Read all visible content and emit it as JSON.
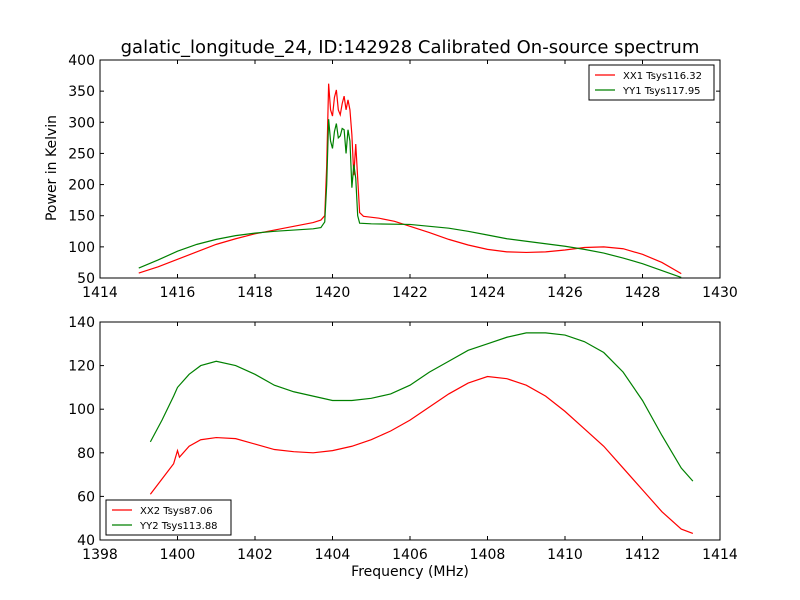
{
  "chart_data": [
    {
      "type": "line",
      "title": "galatic_longitude_24, ID:142928 Calibrated On-source spectrum",
      "xlabel": "",
      "ylabel": "Power in Kelvin",
      "xlim": [
        1414,
        1430
      ],
      "ylim": [
        50,
        400
      ],
      "xticks": [
        1414,
        1416,
        1418,
        1420,
        1422,
        1424,
        1426,
        1428,
        1430
      ],
      "yticks": [
        50,
        100,
        150,
        200,
        250,
        300,
        350,
        400
      ],
      "legend_position": "top-right",
      "series": [
        {
          "name": "XX1 Tsys116.32",
          "color": "#ff0000",
          "points": [
            [
              1415.0,
              58
            ],
            [
              1415.5,
              68
            ],
            [
              1416.0,
              80
            ],
            [
              1416.5,
              92
            ],
            [
              1417.0,
              104
            ],
            [
              1417.5,
              113
            ],
            [
              1418.0,
              121
            ],
            [
              1418.5,
              127
            ],
            [
              1419.0,
              133
            ],
            [
              1419.5,
              139
            ],
            [
              1419.7,
              143
            ],
            [
              1419.8,
              150
            ],
            [
              1419.85,
              230
            ],
            [
              1419.9,
              362
            ],
            [
              1419.95,
              320
            ],
            [
              1420.0,
              310
            ],
            [
              1420.05,
              340
            ],
            [
              1420.1,
              352
            ],
            [
              1420.15,
              320
            ],
            [
              1420.2,
              312
            ],
            [
              1420.25,
              330
            ],
            [
              1420.3,
              342
            ],
            [
              1420.35,
              320
            ],
            [
              1420.4,
              336
            ],
            [
              1420.45,
              320
            ],
            [
              1420.5,
              280
            ],
            [
              1420.55,
              215
            ],
            [
              1420.6,
              265
            ],
            [
              1420.65,
              210
            ],
            [
              1420.7,
              155
            ],
            [
              1420.8,
              149
            ],
            [
              1421.2,
              146
            ],
            [
              1421.6,
              141
            ],
            [
              1422.0,
              133
            ],
            [
              1422.5,
              123
            ],
            [
              1423.0,
              112
            ],
            [
              1423.5,
              103
            ],
            [
              1424.0,
              96
            ],
            [
              1424.5,
              92
            ],
            [
              1425.0,
              91
            ],
            [
              1425.5,
              92
            ],
            [
              1426.0,
              95
            ],
            [
              1426.5,
              99
            ],
            [
              1427.0,
              100
            ],
            [
              1427.5,
              97
            ],
            [
              1428.0,
              88
            ],
            [
              1428.5,
              75
            ],
            [
              1429.0,
              57
            ]
          ]
        },
        {
          "name": "YY1 Tsys117.95",
          "color": "#008000",
          "points": [
            [
              1415.0,
              66
            ],
            [
              1415.5,
              79
            ],
            [
              1416.0,
              93
            ],
            [
              1416.5,
              104
            ],
            [
              1417.0,
              112
            ],
            [
              1417.5,
              118
            ],
            [
              1418.0,
              122
            ],
            [
              1418.5,
              125
            ],
            [
              1419.0,
              127
            ],
            [
              1419.5,
              129
            ],
            [
              1419.7,
              131
            ],
            [
              1419.8,
              140
            ],
            [
              1419.85,
              200
            ],
            [
              1419.9,
              305
            ],
            [
              1419.95,
              270
            ],
            [
              1420.0,
              258
            ],
            [
              1420.05,
              285
            ],
            [
              1420.1,
              298
            ],
            [
              1420.15,
              275
            ],
            [
              1420.2,
              278
            ],
            [
              1420.25,
              290
            ],
            [
              1420.3,
              288
            ],
            [
              1420.35,
              250
            ],
            [
              1420.4,
              288
            ],
            [
              1420.45,
              270
            ],
            [
              1420.5,
              195
            ],
            [
              1420.55,
              232
            ],
            [
              1420.6,
              210
            ],
            [
              1420.65,
              150
            ],
            [
              1420.7,
              138
            ],
            [
              1421.0,
              137
            ],
            [
              1422.0,
              136
            ],
            [
              1423.0,
              130
            ],
            [
              1423.5,
              125
            ],
            [
              1424.0,
              119
            ],
            [
              1424.5,
              113
            ],
            [
              1425.0,
              109
            ],
            [
              1425.5,
              105
            ],
            [
              1426.0,
              101
            ],
            [
              1426.5,
              96
            ],
            [
              1427.0,
              90
            ],
            [
              1427.5,
              82
            ],
            [
              1428.0,
              73
            ],
            [
              1428.5,
              62
            ],
            [
              1429.0,
              51
            ]
          ]
        }
      ]
    },
    {
      "type": "line",
      "title": "",
      "xlabel": "Frequency (MHz)",
      "ylabel": "",
      "xlim": [
        1398,
        1414
      ],
      "ylim": [
        40,
        140
      ],
      "xticks": [
        1398,
        1400,
        1402,
        1404,
        1406,
        1408,
        1410,
        1412,
        1414
      ],
      "yticks": [
        40,
        60,
        80,
        100,
        120,
        140
      ],
      "legend_position": "bottom-left",
      "series": [
        {
          "name": "XX2 Tsys87.06",
          "color": "#ff0000",
          "points": [
            [
              1399.3,
              61
            ],
            [
              1399.6,
              68
            ],
            [
              1399.9,
              75
            ],
            [
              1400.0,
              81
            ],
            [
              1400.05,
              78
            ],
            [
              1400.3,
              83
            ],
            [
              1400.6,
              86
            ],
            [
              1401.0,
              87
            ],
            [
              1401.5,
              86.5
            ],
            [
              1402.0,
              84
            ],
            [
              1402.5,
              81.5
            ],
            [
              1403.0,
              80.5
            ],
            [
              1403.5,
              80
            ],
            [
              1404.0,
              81
            ],
            [
              1404.5,
              83
            ],
            [
              1405.0,
              86
            ],
            [
              1405.5,
              90
            ],
            [
              1406.0,
              95
            ],
            [
              1406.5,
              101
            ],
            [
              1407.0,
              107
            ],
            [
              1407.5,
              112
            ],
            [
              1408.0,
              115
            ],
            [
              1408.5,
              114
            ],
            [
              1409.0,
              111
            ],
            [
              1409.5,
              106
            ],
            [
              1410.0,
              99
            ],
            [
              1410.5,
              91
            ],
            [
              1411.0,
              83
            ],
            [
              1411.5,
              73
            ],
            [
              1412.0,
              63
            ],
            [
              1412.5,
              53
            ],
            [
              1413.0,
              45
            ],
            [
              1413.3,
              43
            ]
          ]
        },
        {
          "name": "YY2 Tsys113.88",
          "color": "#008000",
          "points": [
            [
              1399.3,
              85
            ],
            [
              1399.6,
              95
            ],
            [
              1399.9,
              106
            ],
            [
              1400.0,
              110
            ],
            [
              1400.3,
              116
            ],
            [
              1400.6,
              120
            ],
            [
              1401.0,
              122
            ],
            [
              1401.5,
              120
            ],
            [
              1402.0,
              116
            ],
            [
              1402.5,
              111
            ],
            [
              1403.0,
              108
            ],
            [
              1403.5,
              106
            ],
            [
              1404.0,
              104
            ],
            [
              1404.5,
              104
            ],
            [
              1405.0,
              105
            ],
            [
              1405.5,
              107
            ],
            [
              1406.0,
              111
            ],
            [
              1406.5,
              117
            ],
            [
              1407.0,
              122
            ],
            [
              1407.5,
              127
            ],
            [
              1408.0,
              130
            ],
            [
              1408.5,
              133
            ],
            [
              1409.0,
              135
            ],
            [
              1409.5,
              135
            ],
            [
              1410.0,
              134
            ],
            [
              1410.5,
              131
            ],
            [
              1411.0,
              126
            ],
            [
              1411.5,
              117
            ],
            [
              1412.0,
              104
            ],
            [
              1412.5,
              88
            ],
            [
              1413.0,
              73
            ],
            [
              1413.3,
              67
            ]
          ]
        }
      ]
    }
  ]
}
